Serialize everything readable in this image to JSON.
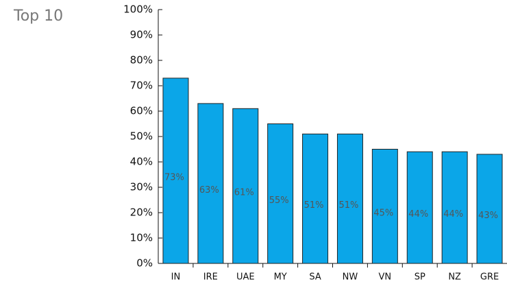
{
  "chart_data": {
    "type": "bar",
    "title": "Top 10",
    "categories": [
      "IN",
      "IRE",
      "UAE",
      "MY",
      "SA",
      "NW",
      "VN",
      "SP",
      "NZ",
      "GRE"
    ],
    "values": [
      73,
      63,
      61,
      55,
      51,
      51,
      45,
      44,
      44,
      43
    ],
    "value_labels": [
      "73%",
      "63%",
      "61%",
      "55%",
      "51%",
      "51%",
      "45%",
      "44%",
      "44%",
      "43%"
    ],
    "color": "#0ba6e8",
    "ylim": [
      0,
      100
    ],
    "yticks": [
      {
        "value": 0,
        "label": "0%"
      },
      {
        "value": 10,
        "label": "10%"
      },
      {
        "value": 20,
        "label": "20%"
      },
      {
        "value": 30,
        "label": "30%"
      },
      {
        "value": 40,
        "label": "40%"
      },
      {
        "value": 50,
        "label": "50%"
      },
      {
        "value": 60,
        "label": "60%"
      },
      {
        "value": 70,
        "label": "70%"
      },
      {
        "value": 80,
        "label": "80%"
      },
      {
        "value": 90,
        "label": "90%"
      },
      {
        "value": 100,
        "label": "100%"
      }
    ],
    "grid": false
  }
}
